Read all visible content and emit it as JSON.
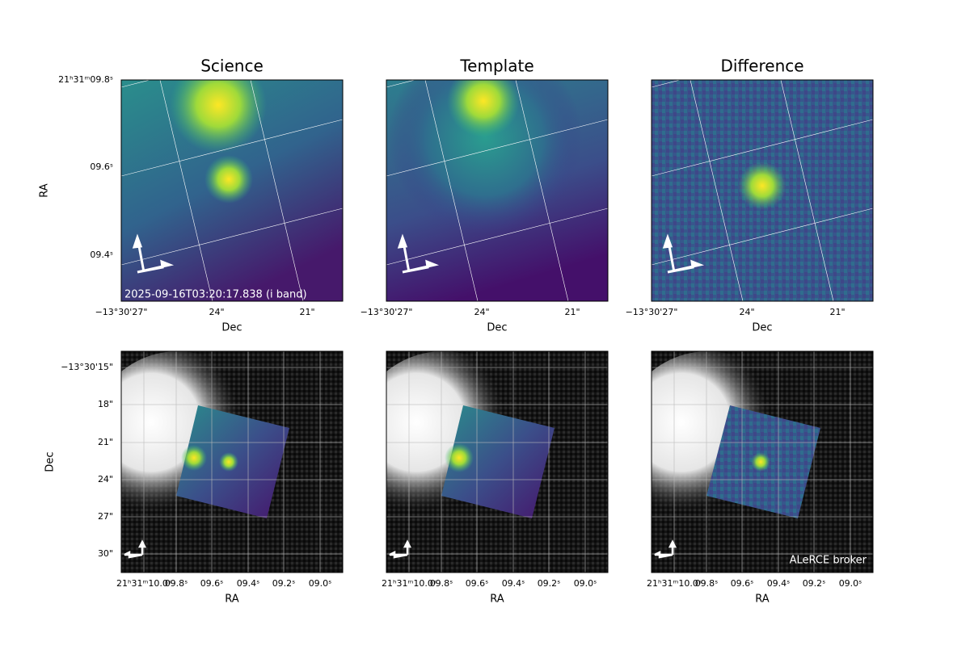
{
  "top": [
    {
      "title": "Science",
      "xlabel": "Dec",
      "ylabel": "RA",
      "xticks": [
        "−13°30'27\"",
        "24\"",
        "21\""
      ],
      "yticks": [
        "21ʰ31ᵐ09.8ˢ",
        "09.6ˢ",
        "09.4ˢ"
      ],
      "annotation": "2025-09-16T03:20:17.838 (i band)"
    },
    {
      "title": "Template",
      "xlabel": "Dec",
      "xticks": [
        "−13°30'27\"",
        "24\"",
        "21\""
      ]
    },
    {
      "title": "Difference",
      "xlabel": "Dec",
      "xticks": [
        "−13°30'27\"",
        "24\"",
        "21\""
      ]
    }
  ],
  "bottom": [
    {
      "xlabel": "RA",
      "ylabel": "Dec",
      "xticks": [
        "21ʰ31ᵐ10.0ˢ",
        "09.8ˢ",
        "09.6ˢ",
        "09.4ˢ",
        "09.2ˢ",
        "09.0ˢ"
      ],
      "yticks": [
        "−13°30'15\"",
        "18\"",
        "21\"",
        "24\"",
        "27\"",
        "30\""
      ]
    },
    {
      "xlabel": "RA",
      "xticks": [
        "21ʰ31ᵐ10.0ˢ",
        "09.8ˢ",
        "09.6ˢ",
        "09.4ˢ",
        "09.2ˢ",
        "09.0ˢ"
      ]
    },
    {
      "xlabel": "RA",
      "xticks": [
        "21ʰ31ᵐ10.0ˢ",
        "09.8ˢ",
        "09.6ˢ",
        "09.4ˢ",
        "09.2ˢ",
        "09.0ˢ"
      ],
      "annotation": "ALeRCE broker"
    }
  ]
}
